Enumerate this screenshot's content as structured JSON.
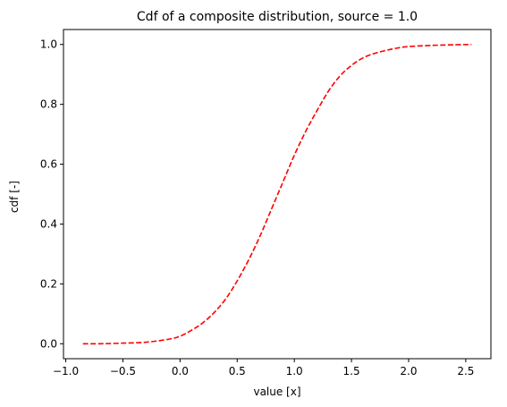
{
  "chart_data": {
    "type": "line",
    "title": "Cdf of a composite distribution, source = 1.0",
    "xlabel": "value [x]",
    "ylabel": "cdf [-]",
    "xlim": [
      -1.02,
      2.72
    ],
    "ylim": [
      -0.05,
      1.05
    ],
    "xticks": [
      -1.0,
      -0.5,
      0.0,
      0.5,
      1.0,
      1.5,
      2.0,
      2.5
    ],
    "xtick_labels": [
      "−1.0",
      "−0.5",
      "0.0",
      "0.5",
      "1.0",
      "1.5",
      "2.0",
      "2.5"
    ],
    "yticks": [
      0.0,
      0.2,
      0.4,
      0.6,
      0.8,
      1.0
    ],
    "ytick_labels": [
      "0.0",
      "0.2",
      "0.4",
      "0.6",
      "0.8",
      "1.0"
    ],
    "grid": false,
    "legend": "none",
    "series": [
      {
        "color": "#ff0000",
        "line_style": "dashed",
        "x": [
          -0.85,
          -0.7,
          -0.5,
          -0.3,
          -0.1,
          0.0,
          0.1,
          0.2,
          0.3,
          0.4,
          0.5,
          0.6,
          0.7,
          0.8,
          0.9,
          1.0,
          1.1,
          1.2,
          1.3,
          1.4,
          1.5,
          1.6,
          1.7,
          1.8,
          1.9,
          2.0,
          2.2,
          2.4,
          2.55
        ],
        "y": [
          0.0,
          0.0,
          0.002,
          0.005,
          0.015,
          0.025,
          0.045,
          0.07,
          0.105,
          0.15,
          0.21,
          0.28,
          0.36,
          0.45,
          0.54,
          0.63,
          0.71,
          0.78,
          0.845,
          0.895,
          0.93,
          0.955,
          0.97,
          0.98,
          0.988,
          0.993,
          0.997,
          0.999,
          1.0
        ]
      }
    ]
  }
}
